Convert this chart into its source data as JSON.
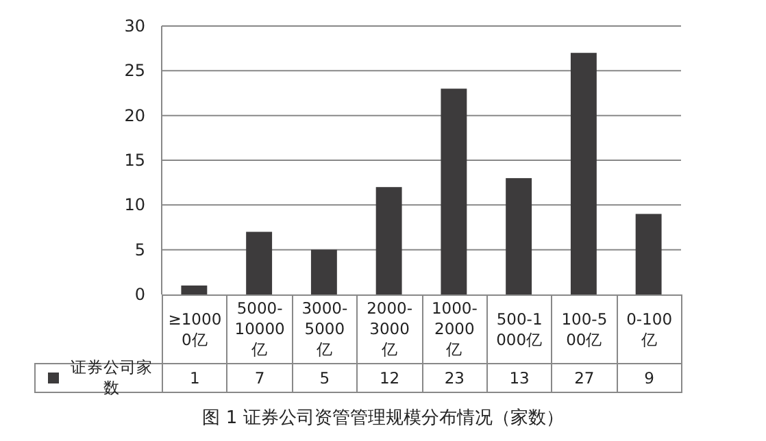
{
  "chart_data": {
    "type": "bar",
    "title": "图 1 证券公司资管管理规模分布情况（家数）",
    "categories": [
      "≥10000亿",
      "5000-10000亿",
      "3000-5000亿",
      "2000-3000亿",
      "1000-2000亿",
      "500-1000亿",
      "100-500亿",
      "0-100亿"
    ],
    "series": [
      {
        "name": "证券公司家数",
        "color": "#3d3b3c",
        "values": [
          1,
          7,
          5,
          12,
          23,
          13,
          27,
          9
        ]
      }
    ],
    "ylim": [
      0,
      30
    ],
    "yticks": [
      0,
      5,
      10,
      15,
      20,
      25,
      30
    ],
    "grid": "y",
    "legend": "bottom left",
    "data_labels": true
  }
}
